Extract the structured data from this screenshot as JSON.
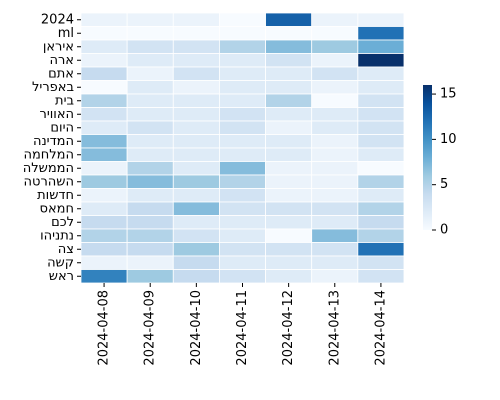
{
  "chart_data": {
    "type": "heatmap",
    "title": "",
    "xlabel": "",
    "ylabel": "",
    "colormap": "Blues",
    "color_min": "#f7fbff",
    "color_max": "#08306b",
    "vmin": 0,
    "vmax": 16,
    "colorbar_ticks": [
      0,
      5,
      10,
      15
    ],
    "x_labels": [
      "2024-04-08",
      "2024-04-09",
      "2024-04-10",
      "2024-04-11",
      "2024-04-12",
      "2024-04-13",
      "2024-04-14"
    ],
    "y_labels": [
      "2024",
      "ml",
      "איראן",
      "ארה",
      "אתם",
      "באפריל",
      "בית",
      "האוויר",
      "היום",
      "המדינה",
      "המלחמה",
      "הממשלה",
      "השהרטה",
      "חדשות",
      "חמאס",
      "לכם",
      "נתניהו",
      "צה",
      "קשה",
      "ראש"
    ],
    "values": [
      [
        1,
        1,
        1,
        0,
        13,
        1,
        1
      ],
      [
        0,
        0,
        0,
        0,
        0,
        0,
        12
      ],
      [
        2,
        3,
        3,
        5,
        7,
        6,
        8
      ],
      [
        1,
        2,
        2,
        2,
        3,
        1,
        16
      ],
      [
        4,
        1,
        3,
        2,
        2,
        3,
        2
      ],
      [
        0,
        2,
        1,
        2,
        2,
        1,
        2
      ],
      [
        5,
        2,
        2,
        2,
        5,
        0,
        3
      ],
      [
        3,
        2,
        2,
        3,
        2,
        2,
        3
      ],
      [
        2,
        3,
        2,
        3,
        1,
        2,
        3
      ],
      [
        7,
        2,
        2,
        2,
        2,
        1,
        3
      ],
      [
        7,
        2,
        2,
        2,
        2,
        1,
        2
      ],
      [
        1,
        5,
        2,
        7,
        1,
        1,
        0
      ],
      [
        6,
        7,
        6,
        5,
        1,
        1,
        5
      ],
      [
        1,
        2,
        2,
        3,
        1,
        1,
        2
      ],
      [
        2,
        4,
        7,
        3,
        3,
        3,
        5
      ],
      [
        4,
        4,
        2,
        2,
        2,
        2,
        4
      ],
      [
        5,
        5,
        3,
        2,
        0,
        7,
        5
      ],
      [
        4,
        4,
        6,
        3,
        3,
        3,
        12
      ],
      [
        1,
        1,
        4,
        2,
        2,
        2,
        3
      ],
      [
        11,
        6,
        4,
        3,
        2,
        1,
        3
      ]
    ]
  }
}
